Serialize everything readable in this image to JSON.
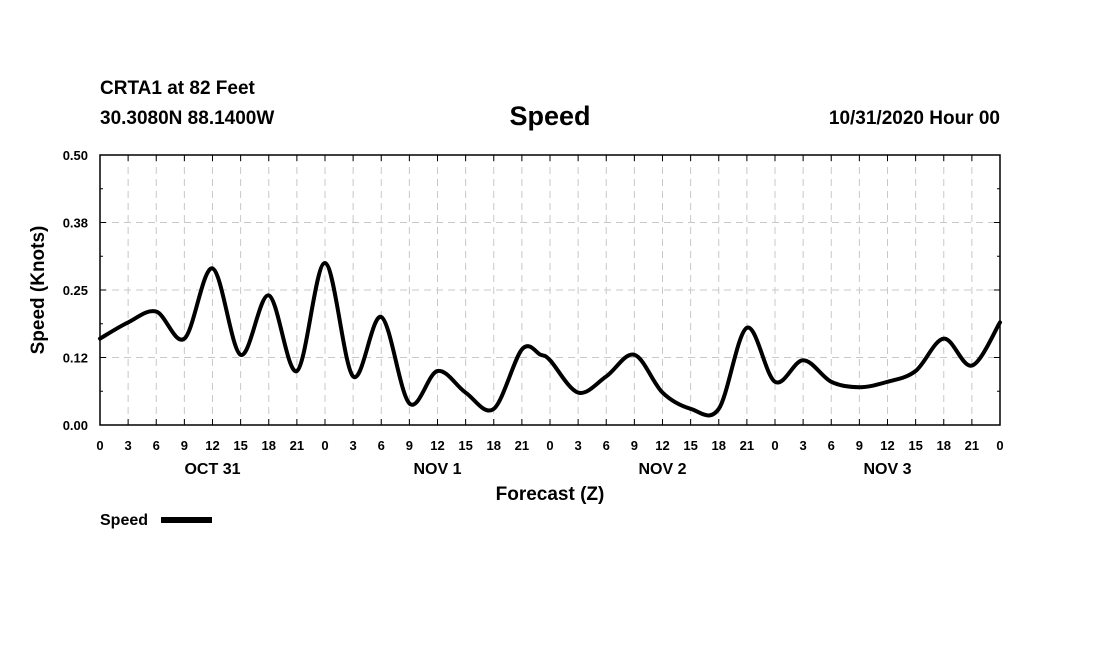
{
  "header": {
    "station": "CRTA1 at 82 Feet",
    "coords": "30.3080N 88.1400W",
    "title": "Speed",
    "run": "10/31/2020 Hour 00"
  },
  "legend": {
    "label": "Speed"
  },
  "chart_data": {
    "type": "line",
    "title": "Speed",
    "xlabel": "Forecast (Z)",
    "ylabel": "Speed (Knots)",
    "ylim": [
      0,
      0.5
    ],
    "xlim": [
      0,
      96
    ],
    "x_unit": "forecast hour",
    "y_ticks": [
      "0.00",
      "0.12",
      "0.25",
      "0.38",
      "0.50"
    ],
    "x_tick_labels": [
      "0",
      "3",
      "6",
      "9",
      "12",
      "15",
      "18",
      "21",
      "0",
      "3",
      "6",
      "9",
      "12",
      "15",
      "18",
      "21",
      "0",
      "3",
      "6",
      "9",
      "12",
      "15",
      "18",
      "21",
      "0",
      "3",
      "6",
      "9",
      "12",
      "15",
      "18",
      "21",
      "0"
    ],
    "day_labels": [
      {
        "label": "OCT 31",
        "hour": 12
      },
      {
        "label": "NOV 1",
        "hour": 36
      },
      {
        "label": "NOV 2",
        "hour": 60
      },
      {
        "label": "NOV 3",
        "hour": 84
      }
    ],
    "grid": true,
    "series": [
      {
        "name": "Speed",
        "color": "#000000",
        "x": [
          0,
          3,
          6,
          9,
          12,
          15,
          18,
          21,
          24,
          27,
          30,
          33,
          36,
          39,
          42,
          45,
          47,
          48,
          51,
          54,
          57,
          60,
          63,
          66,
          69,
          72,
          75,
          78,
          81,
          84,
          87,
          90,
          93,
          96
        ],
        "y": [
          0.16,
          0.19,
          0.21,
          0.16,
          0.29,
          0.13,
          0.24,
          0.1,
          0.3,
          0.09,
          0.2,
          0.04,
          0.1,
          0.06,
          0.03,
          0.14,
          0.13,
          0.12,
          0.06,
          0.09,
          0.13,
          0.06,
          0.03,
          0.03,
          0.18,
          0.08,
          0.12,
          0.08,
          0.07,
          0.08,
          0.1,
          0.16,
          0.11,
          0.19
        ]
      }
    ]
  }
}
